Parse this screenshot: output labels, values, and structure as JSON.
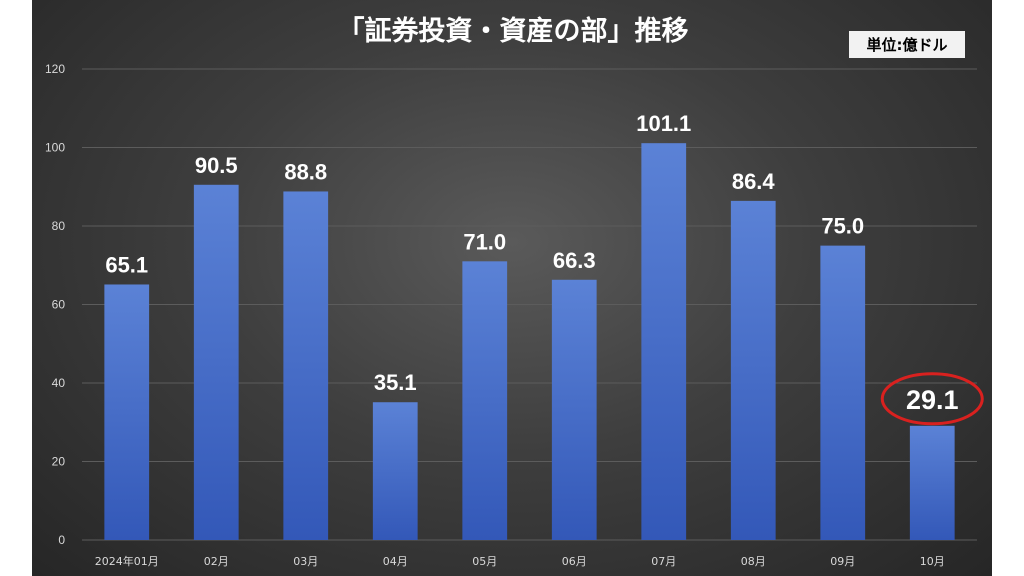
{
  "chart_data": {
    "type": "bar",
    "title": "「証券投資・資産の部」推移",
    "unit_label": "単位:億ドル",
    "categories": [
      "2024年01月",
      "02月",
      "03月",
      "04月",
      "05月",
      "06月",
      "07月",
      "08月",
      "09月",
      "10月"
    ],
    "values": [
      65.1,
      90.5,
      88.8,
      35.1,
      71.0,
      66.3,
      101.1,
      86.4,
      75.0,
      29.1
    ],
    "data_labels": [
      "65.1",
      "90.5",
      "88.8",
      "35.1",
      "71.0",
      "66.3",
      "101.1",
      "86.4",
      "75.0",
      "29.1"
    ],
    "ylim": [
      0,
      120
    ],
    "yticks": [
      "0",
      "20",
      "40",
      "60",
      "80",
      "100",
      "120"
    ],
    "ytick_values": [
      0,
      20,
      40,
      60,
      80,
      100,
      120
    ],
    "grid": true,
    "highlight_index": 9,
    "colors": {
      "bar_top": "#5b82d6",
      "bar_bottom": "#3358b8",
      "highlight_ring": "#d9211f",
      "gridline": "#5c5c5c"
    }
  }
}
